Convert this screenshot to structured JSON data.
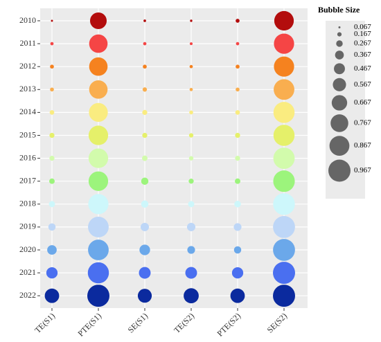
{
  "chart_data": {
    "type": "bubble",
    "categories": [
      "TE(S1)",
      "PTE(S1)",
      "SE(S1)",
      "TE(S2)",
      "PTE(S2)",
      "SE(S2)"
    ],
    "series": [
      {
        "name": "2010",
        "color": "#b30d0d",
        "values": [
          0.067,
          0.72,
          0.09,
          0.08,
          0.15,
          0.85
        ]
      },
      {
        "name": "2011",
        "color": "#f54545",
        "values": [
          0.12,
          0.8,
          0.12,
          0.1,
          0.12,
          0.88
        ]
      },
      {
        "name": "2012",
        "color": "#f5821f",
        "values": [
          0.15,
          0.8,
          0.15,
          0.12,
          0.15,
          0.88
        ]
      },
      {
        "name": "2013",
        "color": "#f9ae4f",
        "values": [
          0.15,
          0.8,
          0.17,
          0.12,
          0.15,
          0.9
        ]
      },
      {
        "name": "2014",
        "color": "#faec80",
        "values": [
          0.18,
          0.82,
          0.2,
          0.15,
          0.18,
          0.92
        ]
      },
      {
        "name": "2015",
        "color": "#e5f06a",
        "values": [
          0.2,
          0.85,
          0.2,
          0.17,
          0.2,
          0.92
        ]
      },
      {
        "name": "2016",
        "color": "#d2fbac",
        "values": [
          0.2,
          0.85,
          0.22,
          0.17,
          0.2,
          0.93
        ]
      },
      {
        "name": "2017",
        "color": "#9cf47c",
        "values": [
          0.22,
          0.85,
          0.3,
          0.2,
          0.22,
          0.94
        ]
      },
      {
        "name": "2018",
        "color": "#cdf7fb",
        "values": [
          0.25,
          0.88,
          0.3,
          0.25,
          0.27,
          0.95
        ]
      },
      {
        "name": "2019",
        "color": "#bdd6f7",
        "values": [
          0.3,
          0.9,
          0.35,
          0.35,
          0.32,
          0.96
        ]
      },
      {
        "name": "2020",
        "color": "#6ba8ea",
        "values": [
          0.4,
          0.9,
          0.45,
          0.32,
          0.3,
          0.96
        ]
      },
      {
        "name": "2021",
        "color": "#4a6ff0",
        "values": [
          0.48,
          0.92,
          0.5,
          0.5,
          0.48,
          0.967
        ]
      },
      {
        "name": "2022",
        "color": "#0b2a9e",
        "values": [
          0.62,
          0.967,
          0.6,
          0.65,
          0.62,
          0.967
        ]
      }
    ],
    "size_legend": {
      "title": "Bubble Size",
      "color": "#666666",
      "values": [
        0.067,
        0.167,
        0.267,
        0.367,
        0.467,
        0.567,
        0.667,
        0.767,
        0.867,
        0.967
      ]
    }
  }
}
